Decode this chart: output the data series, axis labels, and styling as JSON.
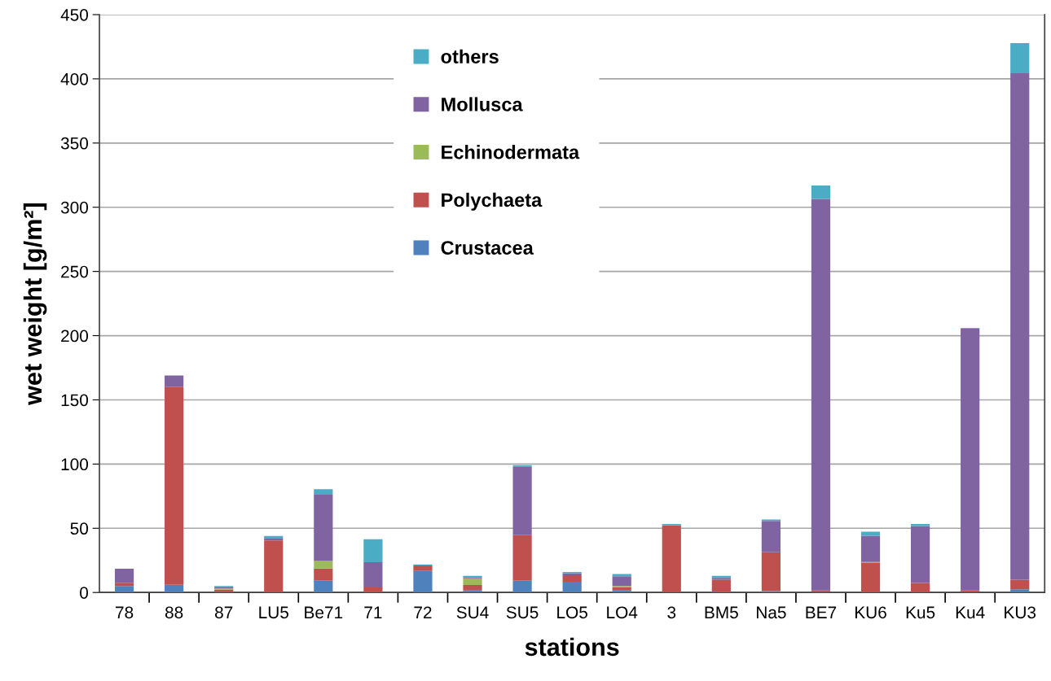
{
  "chart_data": {
    "type": "bar",
    "stacked": true,
    "xlabel": "stations",
    "ylabel": "wet weight [g/m²]",
    "categories": [
      "78",
      "88",
      "87",
      "LU5",
      "Be71",
      "71",
      "72",
      "SU4",
      "SU5",
      "LO5",
      "LO4",
      "3",
      "BM5",
      "Na5",
      "BE7",
      "KU6",
      "Ku5",
      "Ku4",
      "KU3"
    ],
    "series": [
      {
        "name": "Crustacea",
        "color": "#4f81bd",
        "values": [
          5,
          6,
          0,
          0,
          9.1,
          0,
          16.7,
          1.5,
          9.1,
          8.4,
          1.5,
          0,
          0.8,
          1,
          0,
          0,
          0,
          0,
          2.5
        ]
      },
      {
        "name": "Polychaeta",
        "color": "#c0504d",
        "values": [
          2.5,
          154,
          2.3,
          40.5,
          9.5,
          4,
          4.4,
          4.4,
          35.6,
          5.1,
          2.7,
          52.3,
          9.1,
          30.4,
          1.5,
          23,
          7.4,
          1.5,
          7.4
        ]
      },
      {
        "name": "Echinodermata",
        "color": "#9bbb59",
        "values": [
          0,
          0,
          0.8,
          0,
          5.9,
          0,
          0,
          5.1,
          0,
          0,
          0.9,
          0,
          0,
          0,
          0,
          0.8,
          0,
          0,
          0
        ]
      },
      {
        "name": "Mollusca",
        "color": "#8064a2",
        "values": [
          11,
          9,
          0.9,
          1.5,
          51.7,
          19.6,
          0,
          1,
          53.4,
          1.5,
          7.6,
          0,
          1.5,
          24.3,
          305,
          20.3,
          44.3,
          204,
          394.4
        ]
      },
      {
        "name": "others",
        "color": "#4bacc6",
        "values": [
          0,
          0,
          1,
          2,
          4.2,
          17.8,
          0.8,
          0.9,
          1.1,
          1,
          1.6,
          1.1,
          1.5,
          1.1,
          10.5,
          3.2,
          1.7,
          0.5,
          23.5
        ]
      }
    ],
    "ylim": [
      0,
      450
    ],
    "yticks": [
      0,
      50,
      100,
      150,
      200,
      250,
      300,
      350,
      400,
      450
    ],
    "grid": "y",
    "legend": "top"
  }
}
